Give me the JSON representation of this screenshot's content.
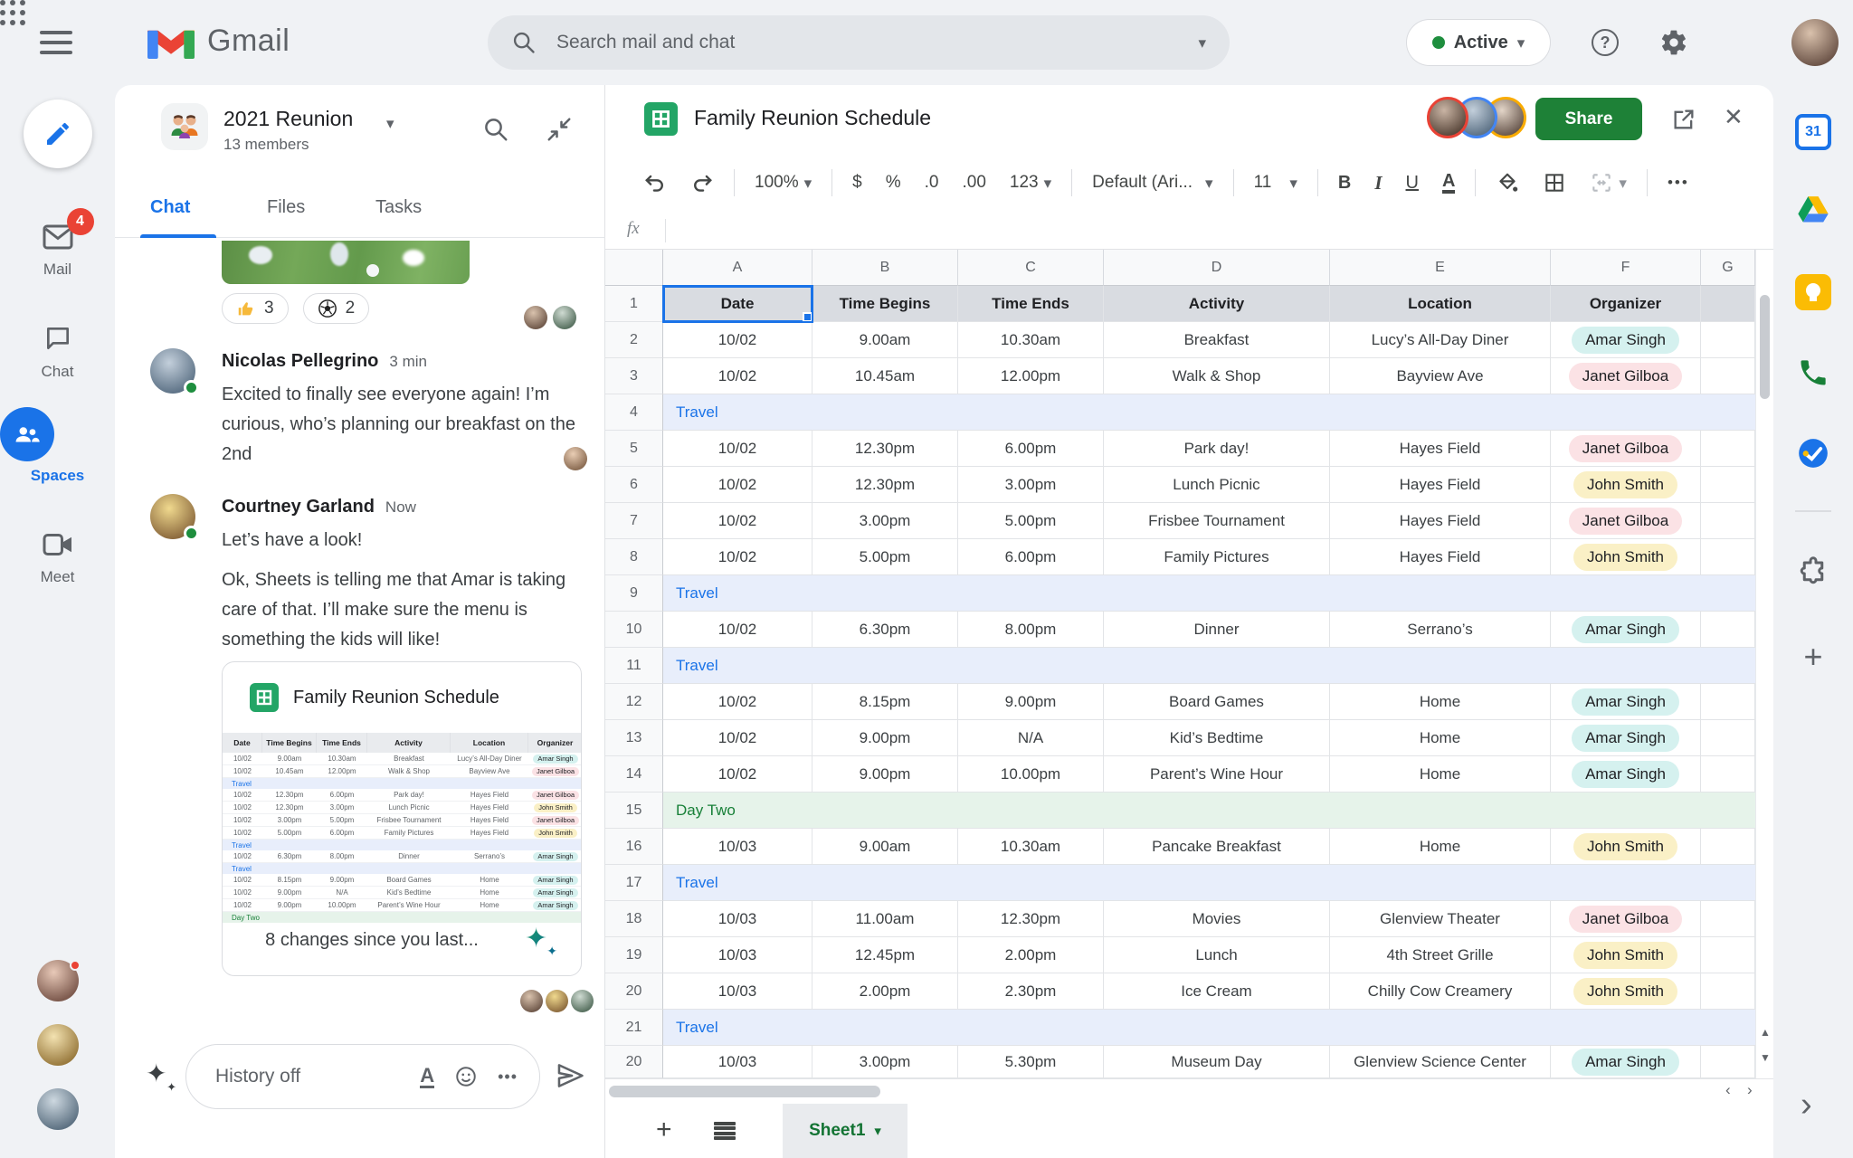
{
  "topbar": {
    "app_name": "Gmail",
    "search_placeholder": "Search mail and chat",
    "status_label": "Active"
  },
  "left_nav": {
    "items": [
      {
        "label": "Mail",
        "badge": "4"
      },
      {
        "label": "Chat"
      },
      {
        "label": "Spaces"
      },
      {
        "label": "Meet"
      }
    ]
  },
  "chat": {
    "title": "2021 Reunion",
    "subtitle": "13 members",
    "tabs": [
      "Chat",
      "Files",
      "Tasks"
    ],
    "reactions": [
      {
        "icon": "thumbs-up",
        "count": "3"
      },
      {
        "icon": "soccer-ball",
        "count": "2"
      }
    ],
    "messages": [
      {
        "name": "Nicolas Pellegrino",
        "time": "3 min",
        "text": "Excited to finally see everyone again! I’m curious, who’s planning our breakfast on the 2nd"
      },
      {
        "name": "Courtney Garland",
        "time": "Now",
        "text1": "Let’s have a look!",
        "text2": "Ok, Sheets is telling me that Amar is taking care of that. I’ll make sure the menu is something the kids will like!"
      }
    ],
    "card": {
      "title": "Family Reunion Schedule",
      "footer": "8 changes since you last...",
      "preview_rows": 14
    },
    "composer": {
      "placeholder": "History off",
      "format_glyph": "A",
      "more_glyph": "•••"
    }
  },
  "sheets": {
    "title": "Family Reunion Schedule",
    "share_label": "Share",
    "toolbar": {
      "zoom": "100%",
      "currency": "$",
      "percent": "%",
      "dec0": ".0",
      "dec00": ".00",
      "num_fmt": "123",
      "font": "Default (Ari...",
      "font_size": "11",
      "bold": "B",
      "italic": "I",
      "underline": "U",
      "color": "A",
      "more": "•••"
    },
    "formula_label": "fx",
    "columns": [
      "A",
      "B",
      "C",
      "D",
      "E",
      "F",
      "G"
    ],
    "table": {
      "headers": [
        "Date",
        "Time Begins",
        "Time Ends",
        "Activity",
        "Location",
        "Organizer"
      ],
      "rows": [
        {
          "n": "2",
          "cells": [
            "10/02",
            "9.00am",
            "10.30am",
            "Breakfast",
            "Lucy’s All-Day Diner"
          ],
          "org": "Amar Singh",
          "org_color": "teal"
        },
        {
          "n": "3",
          "cells": [
            "10/02",
            "10.45am",
            "12.00pm",
            "Walk & Shop",
            "Bayview Ave"
          ],
          "org": "Janet Gilboa",
          "org_color": "pink"
        },
        {
          "n": "4",
          "band": "Travel",
          "band_color": "blue"
        },
        {
          "n": "5",
          "cells": [
            "10/02",
            "12.30pm",
            "6.00pm",
            "Park day!",
            "Hayes Field"
          ],
          "org": "Janet Gilboa",
          "org_color": "pink"
        },
        {
          "n": "6",
          "cells": [
            "10/02",
            "12.30pm",
            "3.00pm",
            "Lunch Picnic",
            "Hayes Field"
          ],
          "org": "John Smith",
          "org_color": "yellow"
        },
        {
          "n": "7",
          "cells": [
            "10/02",
            "3.00pm",
            "5.00pm",
            "Frisbee Tournament",
            "Hayes Field"
          ],
          "org": "Janet Gilboa",
          "org_color": "pink"
        },
        {
          "n": "8",
          "cells": [
            "10/02",
            "5.00pm",
            "6.00pm",
            "Family Pictures",
            "Hayes Field"
          ],
          "org": "John Smith",
          "org_color": "yellow"
        },
        {
          "n": "9",
          "band": "Travel",
          "band_color": "blue"
        },
        {
          "n": "10",
          "cells": [
            "10/02",
            "6.30pm",
            "8.00pm",
            "Dinner",
            "Serrano’s"
          ],
          "org": "Amar Singh",
          "org_color": "teal"
        },
        {
          "n": "11",
          "band": "Travel",
          "band_color": "blue"
        },
        {
          "n": "12",
          "cells": [
            "10/02",
            "8.15pm",
            "9.00pm",
            "Board Games",
            "Home"
          ],
          "org": "Amar Singh",
          "org_color": "teal"
        },
        {
          "n": "13",
          "cells": [
            "10/02",
            "9.00pm",
            "N/A",
            "Kid’s Bedtime",
            "Home"
          ],
          "org": "Amar Singh",
          "org_color": "teal"
        },
        {
          "n": "14",
          "cells": [
            "10/02",
            "9.00pm",
            "10.00pm",
            "Parent’s Wine Hour",
            "Home"
          ],
          "org": "Amar Singh",
          "org_color": "teal"
        },
        {
          "n": "15",
          "band": "Day Two",
          "band_color": "green"
        },
        {
          "n": "16",
          "cells": [
            "10/03",
            "9.00am",
            "10.30am",
            "Pancake Breakfast",
            "Home"
          ],
          "org": "John Smith",
          "org_color": "yellow"
        },
        {
          "n": "17",
          "band": "Travel",
          "band_color": "blue"
        },
        {
          "n": "18",
          "cells": [
            "10/03",
            "11.00am",
            "12.30pm",
            "Movies",
            "Glenview Theater"
          ],
          "org": "Janet Gilboa",
          "org_color": "pink"
        },
        {
          "n": "19",
          "cells": [
            "10/03",
            "12.45pm",
            "2.00pm",
            "Lunch",
            "4th Street Grille"
          ],
          "org": "John Smith",
          "org_color": "yellow"
        },
        {
          "n": "20",
          "cells": [
            "10/03",
            "2.00pm",
            "2.30pm",
            "Ice Cream",
            "Chilly Cow Creamery"
          ],
          "org": "John Smith",
          "org_color": "yellow"
        },
        {
          "n": "21",
          "band": "Travel",
          "band_color": "blue"
        },
        {
          "n": "20",
          "cells": [
            "10/03",
            "3.00pm",
            "5.30pm",
            "Museum Day",
            "Glenview Science Center"
          ],
          "org": "Amar Singh",
          "org_color": "teal",
          "cut": true
        }
      ]
    },
    "tab_bar": {
      "sheet_name": "Sheet1"
    },
    "colors": {
      "pill_teal": "#d5f1ef",
      "pill_pink": "#fbe2e5",
      "pill_yellow": "#faf0c6",
      "band_blue": "#e8eefb",
      "band_blue_text": "#1a73e8",
      "band_green": "#e6f3ea",
      "band_green_text": "#188038",
      "share_green": "#1e8137",
      "accent_blue": "#1a73e8",
      "sheets_green": "#23a566"
    }
  },
  "right_rail": {
    "calendar_label": "31"
  },
  "icons": {
    "caret": "▾",
    "close": "✕",
    "question": "?",
    "plus": "+",
    "scroll_up": "▲",
    "scroll_down": "▼",
    "scroll_left": "‹",
    "scroll_right": "›",
    "chevron_expand": "›",
    "sparkle": "✦",
    "sparkle_small": "✦"
  }
}
